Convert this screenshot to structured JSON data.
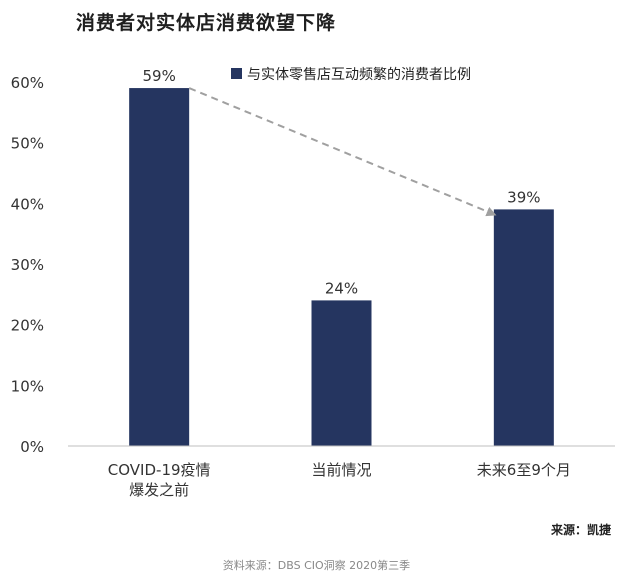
{
  "title": "消费者对实体店消费欲望下降",
  "source_label": "来源：凯捷",
  "footer": "资料来源：DBS CIO洞察 2020第三季",
  "colors": {
    "bar": "#253560",
    "arrow": "#a0a0a0",
    "axis": "#bfbfbf"
  },
  "chart_data": {
    "type": "bar",
    "categories": [
      [
        "COVID-19疫情",
        "爆发之前"
      ],
      [
        "当前情况"
      ],
      [
        "未来6至9个月"
      ]
    ],
    "series": [
      {
        "name": "与实体零售店互动频繁的消费者比例",
        "values": [
          59,
          24,
          39
        ]
      }
    ],
    "value_labels": [
      "59%",
      "24%",
      "39%"
    ],
    "ylim": [
      0,
      60
    ],
    "yticks": [
      "0%",
      "10%",
      "20%",
      "30%",
      "40%",
      "50%",
      "60%"
    ],
    "grid": false,
    "legend_position": "top-right",
    "annotation": "dashed arrow from 59% bar to 39% bar"
  }
}
